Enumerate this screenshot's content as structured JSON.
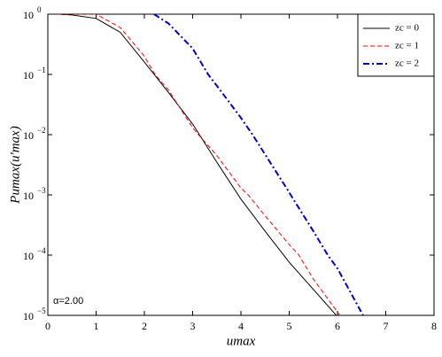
{
  "chart_data": {
    "type": "line",
    "xlabel": "umax",
    "ylabel": "Pumax(u′max)",
    "annotation": "α=2.00",
    "xlim": [
      0,
      8
    ],
    "xticks": [
      0,
      1,
      2,
      3,
      4,
      5,
      6,
      7,
      8
    ],
    "ylim": [
      1e-05,
      1
    ],
    "log_y": true,
    "yticks": [
      {
        "value": 1e-05,
        "label": "10",
        "exp": "−5"
      },
      {
        "value": 0.0001,
        "label": "10",
        "exp": "−4"
      },
      {
        "value": 0.001,
        "label": "10",
        "exp": "−3"
      },
      {
        "value": 0.01,
        "label": "10",
        "exp": "−2"
      },
      {
        "value": 0.1,
        "label": "10",
        "exp": "−1"
      },
      {
        "value": 1,
        "label": "10",
        "exp": "0"
      }
    ],
    "legend": "upper right",
    "series": [
      {
        "name": "zc = 0",
        "color": "#000000",
        "dash": "none",
        "x": [
          0.2,
          0.5,
          1,
          1.5,
          2,
          2.5,
          3,
          3.5,
          4,
          4.5,
          5,
          5.5,
          6
        ],
        "values": [
          1,
          0.97,
          0.85,
          0.5,
          0.16,
          0.05,
          0.015,
          0.0035,
          0.00085,
          0.00025,
          7.6e-05,
          2.7e-05,
          9.5e-06
        ]
      },
      {
        "name": "zc = 1",
        "color": "#ff0000",
        "dash": "5 3",
        "x": [
          0.2,
          0.5,
          1,
          1.5,
          2,
          2.22,
          2.5,
          3,
          3.12,
          3.5,
          4,
          4.15,
          4.5,
          5,
          5.2,
          5.5,
          6.05
        ],
        "values": [
          1,
          1,
          1,
          0.6,
          0.2,
          0.1,
          0.055,
          0.013,
          0.01,
          0.0045,
          0.0013,
          0.001,
          0.00045,
          0.00015,
          0.0001,
          4e-05,
          1e-05
        ]
      },
      {
        "name": "zc = 2",
        "color": "#0000cc",
        "dash": "7 3 2 3",
        "x": [
          2.2,
          2.5,
          3,
          3.32,
          3.5,
          4,
          4.24,
          4.5,
          5,
          5.03,
          5.5,
          5.8,
          6,
          6.53
        ],
        "values": [
          1,
          0.7,
          0.27,
          0.1,
          0.065,
          0.019,
          0.01,
          0.0047,
          0.0011,
          0.001,
          0.00025,
          0.0001,
          6e-05,
          1e-05
        ]
      }
    ]
  }
}
